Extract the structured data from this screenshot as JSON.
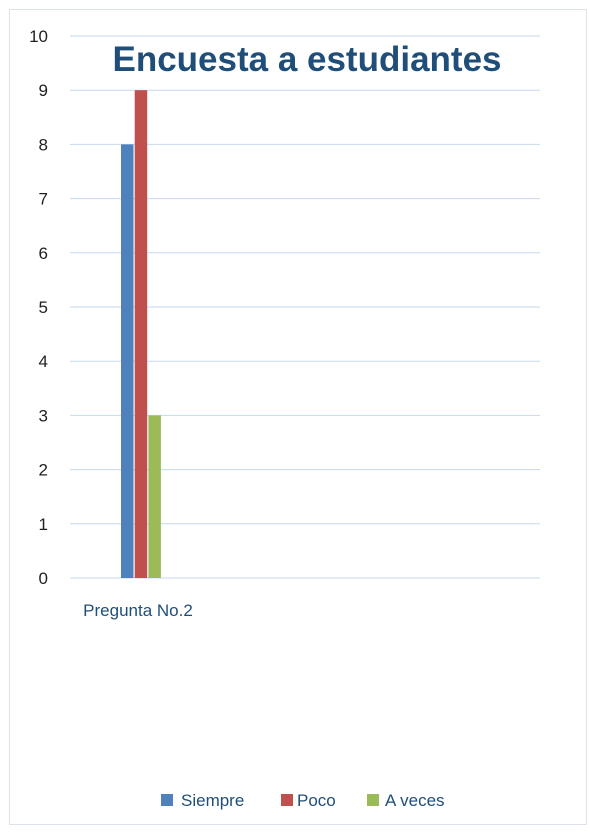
{
  "chart_data": {
    "type": "bar",
    "title": "Encuesta a estudiantes",
    "categories": [
      "Pregunta No.2"
    ],
    "series": [
      {
        "name": "Siempre",
        "values": [
          8
        ],
        "color": "#4f81bd"
      },
      {
        "name": "Poco",
        "values": [
          9
        ],
        "color": "#c0504d"
      },
      {
        "name": "A veces",
        "values": [
          3
        ],
        "color": "#9bbb59"
      }
    ],
    "xlabel": "",
    "ylabel": "",
    "ylim": [
      0,
      10
    ],
    "yticks": [
      "0",
      "1",
      "2",
      "3",
      "4",
      "5",
      "6",
      "7",
      "8",
      "9",
      "10"
    ],
    "grid": true,
    "legend_position": "bottom",
    "gridline_color": "#c6d9ef"
  }
}
